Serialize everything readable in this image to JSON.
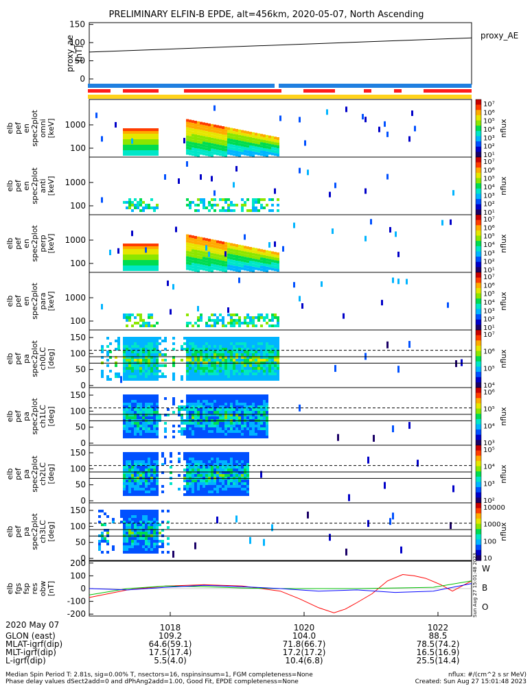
{
  "title": "PRELIMINARY ELFIN-B EPDE, alt=456km, 2020-05-07, North Ascending",
  "legend_right": "proxy_AE",
  "legend_bottom": {
    "w": "W",
    "b": "B",
    "o": "O"
  },
  "side_stamp": "Sun Aug 27 15:01:48 2023",
  "colors": {
    "red_bar": "#ff1a1a",
    "blue_bar": "#1f7fe0",
    "yellow_bar": "#ffd21a",
    "w_line": "#ff0000",
    "b_line": "#00c000",
    "o_line": "#0000ff"
  },
  "chart_data": [
    {
      "type": "line",
      "id": "proxy_ae",
      "ylabel": [
        "proxy_ae",
        "[nT]"
      ],
      "yticks": [
        "150",
        "100",
        "50",
        "0"
      ],
      "ylim": [
        -15,
        155
      ],
      "x": [
        0,
        1
      ],
      "y": [
        74,
        113
      ],
      "series": [
        {
          "name": "proxy_AE"
        }
      ]
    },
    {
      "type": "heatmap",
      "id": "pef_en_omni",
      "ylabel": [
        "elb",
        "pef",
        "en",
        "spec2plot",
        "omni",
        "[keV]"
      ],
      "yticks": [
        "1000",
        "100"
      ],
      "yscale": "log",
      "zlabel": "nflux",
      "cbar_labels": [
        "10⁷",
        "10⁶",
        "10⁵",
        "10⁴",
        "10³",
        "10²",
        "10¹"
      ]
    },
    {
      "type": "heatmap",
      "id": "pef_en_anti",
      "ylabel": [
        "elb",
        "pef",
        "en",
        "spec2plot",
        "anti",
        "[keV]"
      ],
      "yticks": [
        "1000",
        "100"
      ],
      "yscale": "log",
      "zlabel": "nflux",
      "cbar_labels": [
        "10⁷",
        "10⁶",
        "10⁵",
        "10⁴",
        "10³",
        "10²",
        "10¹"
      ]
    },
    {
      "type": "heatmap",
      "id": "pef_en_perp",
      "ylabel": [
        "elb",
        "pef",
        "en",
        "spec2plot",
        "perp",
        "[keV]"
      ],
      "yticks": [
        "1000",
        "100"
      ],
      "yscale": "log",
      "zlabel": "nflux",
      "cbar_labels": [
        "10⁷",
        "10⁶",
        "10⁵",
        "10⁴",
        "10³",
        "10²",
        "10¹"
      ]
    },
    {
      "type": "heatmap",
      "id": "pef_en_para",
      "ylabel": [
        "elb",
        "pef",
        "en",
        "spec2plot",
        "para",
        "[keV]"
      ],
      "yticks": [
        "1000",
        "100"
      ],
      "yscale": "log",
      "zlabel": "nflux",
      "cbar_labels": [
        "10⁷",
        "10⁶",
        "10⁵",
        "10⁴",
        "10³",
        "10²",
        "10¹"
      ]
    },
    {
      "type": "heatmap",
      "id": "pef_pa_ch0",
      "ylabel": [
        "elb",
        "pef",
        "pa",
        "spec2plot",
        "ch0LC",
        "[deg]"
      ],
      "yticks": [
        "150",
        "100",
        "50",
        "0"
      ],
      "zlabel": "nflux",
      "cbar_labels": [
        "10⁷",
        "10⁶",
        "10⁵",
        "10⁴"
      ]
    },
    {
      "type": "heatmap",
      "id": "pef_pa_ch1",
      "ylabel": [
        "elb",
        "pef",
        "pa",
        "spec2plot",
        "ch1LC",
        "[deg]"
      ],
      "yticks": [
        "150",
        "100",
        "50",
        "0"
      ],
      "zlabel": "nflux",
      "cbar_labels": [
        "10⁶",
        "10⁵",
        "10⁴",
        "10³"
      ]
    },
    {
      "type": "heatmap",
      "id": "pef_pa_ch2",
      "ylabel": [
        "elb",
        "pef",
        "pa",
        "spec2plot",
        "ch2LC",
        "[deg]"
      ],
      "yticks": [
        "150",
        "100",
        "50",
        "0"
      ],
      "zlabel": "nflux",
      "cbar_labels": [
        "10⁵",
        "10⁴",
        "10³",
        "10²"
      ]
    },
    {
      "type": "heatmap",
      "id": "pef_pa_ch3",
      "ylabel": [
        "elb",
        "pef",
        "pa",
        "spec2plot",
        "ch3LC",
        "[deg]"
      ],
      "yticks": [
        "150",
        "100",
        "50",
        "0"
      ],
      "zlabel": "nflux",
      "cbar_labels": [
        "10000",
        "1000",
        "100",
        "10"
      ]
    },
    {
      "type": "line",
      "id": "fgs_res_obw",
      "ylabel": [
        "elb",
        "fgs",
        "fsp",
        "res",
        "obw",
        "[nT]"
      ],
      "yticks": [
        "200",
        "100",
        "0",
        "-100",
        "-200"
      ],
      "ylim": [
        -215,
        215
      ],
      "series": [
        {
          "name": "W",
          "x": [
            0,
            0.1,
            0.2,
            0.3,
            0.4,
            0.45,
            0.5,
            0.55,
            0.6,
            0.64,
            0.67,
            0.7,
            0.74,
            0.78,
            0.82,
            0.85,
            0.88,
            0.92,
            0.95,
            1.0
          ],
          "y": [
            -70,
            -10,
            20,
            30,
            20,
            0,
            -20,
            -80,
            -150,
            -190,
            -160,
            -110,
            -40,
            60,
            110,
            100,
            80,
            30,
            -20,
            60
          ]
        },
        {
          "name": "B",
          "x": [
            0,
            0.1,
            0.2,
            0.3,
            0.4,
            0.5,
            0.6,
            0.7,
            0.8,
            0.9,
            1.0
          ],
          "y": [
            -50,
            0,
            20,
            15,
            5,
            0,
            0,
            0,
            5,
            10,
            60
          ]
        },
        {
          "name": "O",
          "x": [
            0,
            0.1,
            0.2,
            0.3,
            0.4,
            0.5,
            0.6,
            0.7,
            0.8,
            0.9,
            1.0
          ],
          "y": [
            0,
            -10,
            10,
            25,
            15,
            0,
            -20,
            -10,
            -30,
            -20,
            40
          ]
        }
      ]
    }
  ],
  "time_axis": {
    "date_label": "2020 May 07",
    "ticks": [
      "1018",
      "1020",
      "1022"
    ],
    "rows": [
      {
        "label": "GLON (east)",
        "values": [
          "109.2",
          "104.0",
          "88.5"
        ]
      },
      {
        "label": "MLAT-igrf(dip)",
        "values": [
          "64.6(59.1)",
          "71.8(66.7)",
          "78.5(74.2)"
        ]
      },
      {
        "label": "MLT-igrf(dip)",
        "values": [
          "17.5(17.4)",
          "17.2(17.2)",
          "16.5(16.9)"
        ]
      },
      {
        "label": "L-igrf(dip)",
        "values": [
          "5.5(4.0)",
          "10.4(6.8)",
          "25.5(14.4)"
        ]
      }
    ]
  },
  "footer": {
    "line1_left": "Median Spin Period T: 2.81s, sig=0.00% T, nsectors=16, nspinsinsum=1, FGM completeness=None",
    "line2_left": "Phase delay values dSect2add=0 and dPhAng2add=1.00, Good Fit, EPDE completeness=None",
    "line1_right": "nflux: #/(cm^2 s sr MeV)",
    "line2_right": "Created: Sun Aug 27 15:01:48 2023"
  }
}
